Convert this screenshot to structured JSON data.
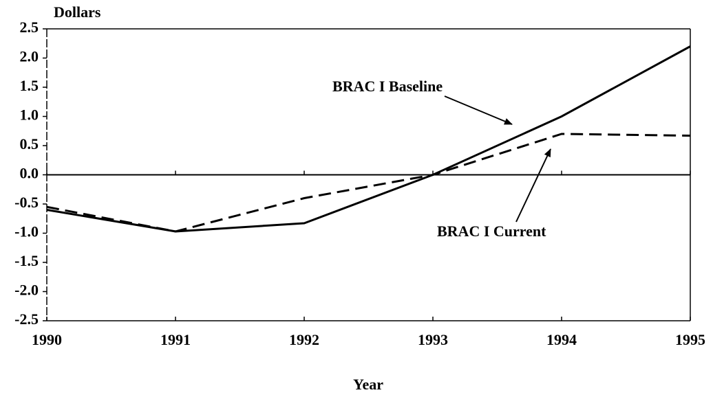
{
  "chart_data": {
    "type": "line",
    "y_label": "Dollars",
    "x_label": "Year",
    "x": [
      1990,
      1991,
      1992,
      1993,
      1994,
      1995
    ],
    "series": [
      {
        "name": "BRAC I Baseline",
        "color": "#000000",
        "dash": "solid",
        "values": [
          -0.6,
          -0.97,
          -0.83,
          0.0,
          1.0,
          2.2
        ]
      },
      {
        "name": "BRAC I Current",
        "color": "#000000",
        "dash": "dashed",
        "values": [
          -0.55,
          -0.97,
          -0.4,
          0.0,
          0.7,
          0.67
        ]
      }
    ],
    "xlim": [
      1990,
      1995
    ],
    "xticks": [
      1990,
      1991,
      1992,
      1993,
      1994,
      1995
    ],
    "ylim": [
      -2.5,
      2.5
    ],
    "yticks": [
      2.5,
      {
        "value": 2,
        "label": "2.0"
      },
      1.5,
      {
        "value": 1,
        "label": "1.0"
      },
      0.5,
      {
        "value": 0,
        "label": "0.0"
      },
      -0.5,
      {
        "value": -1,
        "label": "-1.0"
      },
      -1.5,
      {
        "value": -2,
        "label": "-2.0"
      },
      -2.5
    ]
  }
}
